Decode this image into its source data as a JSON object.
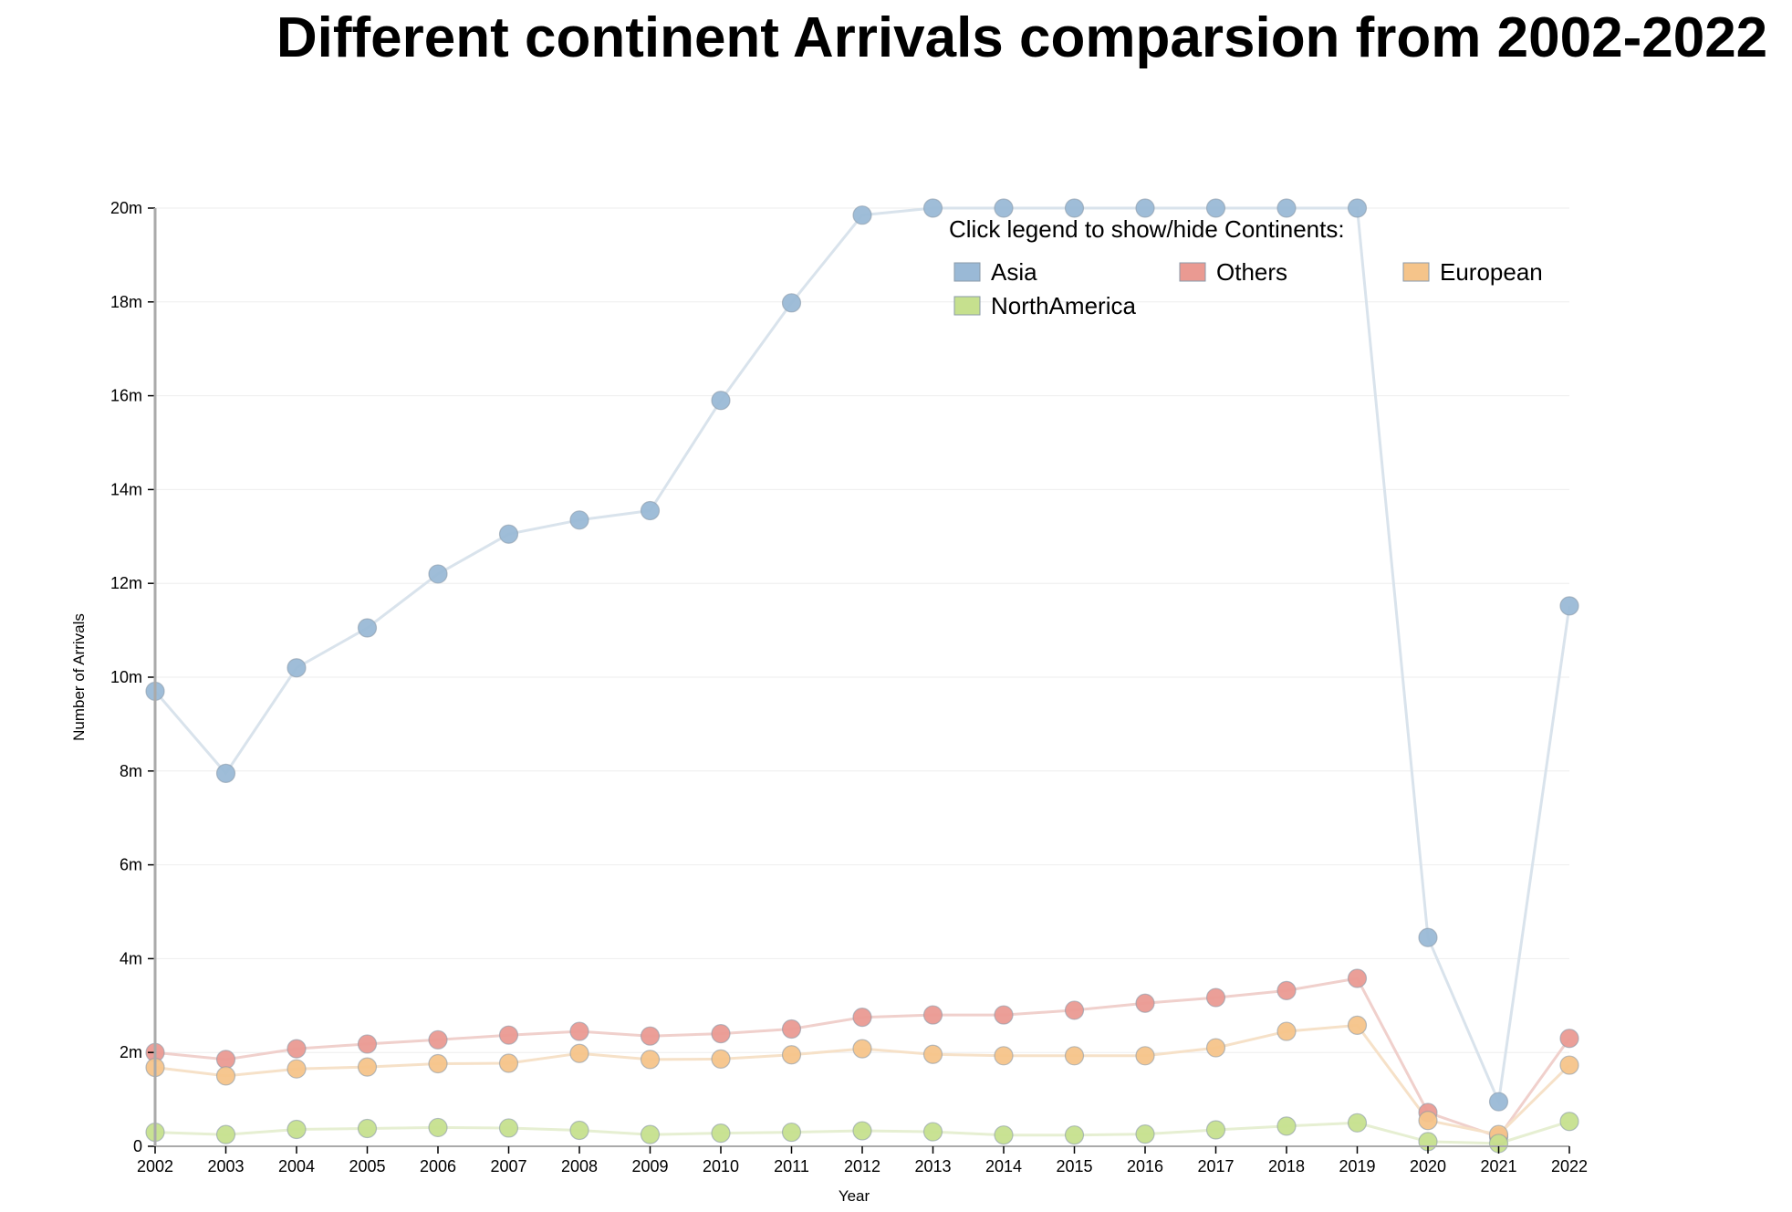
{
  "chart_data": {
    "type": "line",
    "title": "Different continent Arrivals comparsion from 2002-2022",
    "xlabel": "Year",
    "ylabel": "Number of Arrivals",
    "x": [
      "2002",
      "2003",
      "2004",
      "2005",
      "2006",
      "2007",
      "2008",
      "2009",
      "2010",
      "2011",
      "2012",
      "2013",
      "2014",
      "2015",
      "2016",
      "2017",
      "2018",
      "2019",
      "2020",
      "2021",
      "2022"
    ],
    "ylim": [
      0,
      20
    ],
    "yticks": [
      0,
      2,
      4,
      6,
      8,
      10,
      12,
      14,
      16,
      18,
      20
    ],
    "ytick_labels": [
      "0",
      "2m",
      "4m",
      "6m",
      "8m",
      "10m",
      "12m",
      "14m",
      "16m",
      "18m",
      "20m"
    ],
    "grid": "horizontal",
    "legend_title": "Click legend to show/hide Continents:",
    "legend_position": "top-right",
    "series": [
      {
        "name": "Asia",
        "color": "#9ab9d6",
        "line_color": "#d9e3ec",
        "values": [
          9.7,
          7.95,
          10.2,
          11.05,
          12.2,
          13.05,
          13.35,
          13.55,
          15.9,
          17.98,
          19.85,
          20,
          20,
          20,
          20,
          20,
          20,
          20,
          4.45,
          0.95,
          11.52
        ]
      },
      {
        "name": "Others",
        "color": "#ea9a92",
        "line_color": "#f0d0cc",
        "values": [
          2.0,
          1.85,
          2.08,
          2.18,
          2.27,
          2.37,
          2.45,
          2.35,
          2.4,
          2.5,
          2.75,
          2.8,
          2.8,
          2.9,
          3.05,
          3.17,
          3.32,
          3.58,
          0.72,
          0.2,
          2.3
        ]
      },
      {
        "name": "European",
        "color": "#f5c48a",
        "line_color": "#f6e1c8",
        "values": [
          1.68,
          1.5,
          1.65,
          1.69,
          1.76,
          1.77,
          1.98,
          1.85,
          1.86,
          1.95,
          2.08,
          1.96,
          1.93,
          1.93,
          1.93,
          2.1,
          2.45,
          2.58,
          0.55,
          0.25,
          1.73
        ]
      },
      {
        "name": "NorthAmerica",
        "color": "#c6e08e",
        "line_color": "#e6efd2",
        "values": [
          0.3,
          0.25,
          0.36,
          0.38,
          0.4,
          0.39,
          0.34,
          0.25,
          0.28,
          0.3,
          0.33,
          0.31,
          0.24,
          0.24,
          0.26,
          0.35,
          0.43,
          0.5,
          0.1,
          0.06,
          0.53
        ]
      }
    ]
  }
}
